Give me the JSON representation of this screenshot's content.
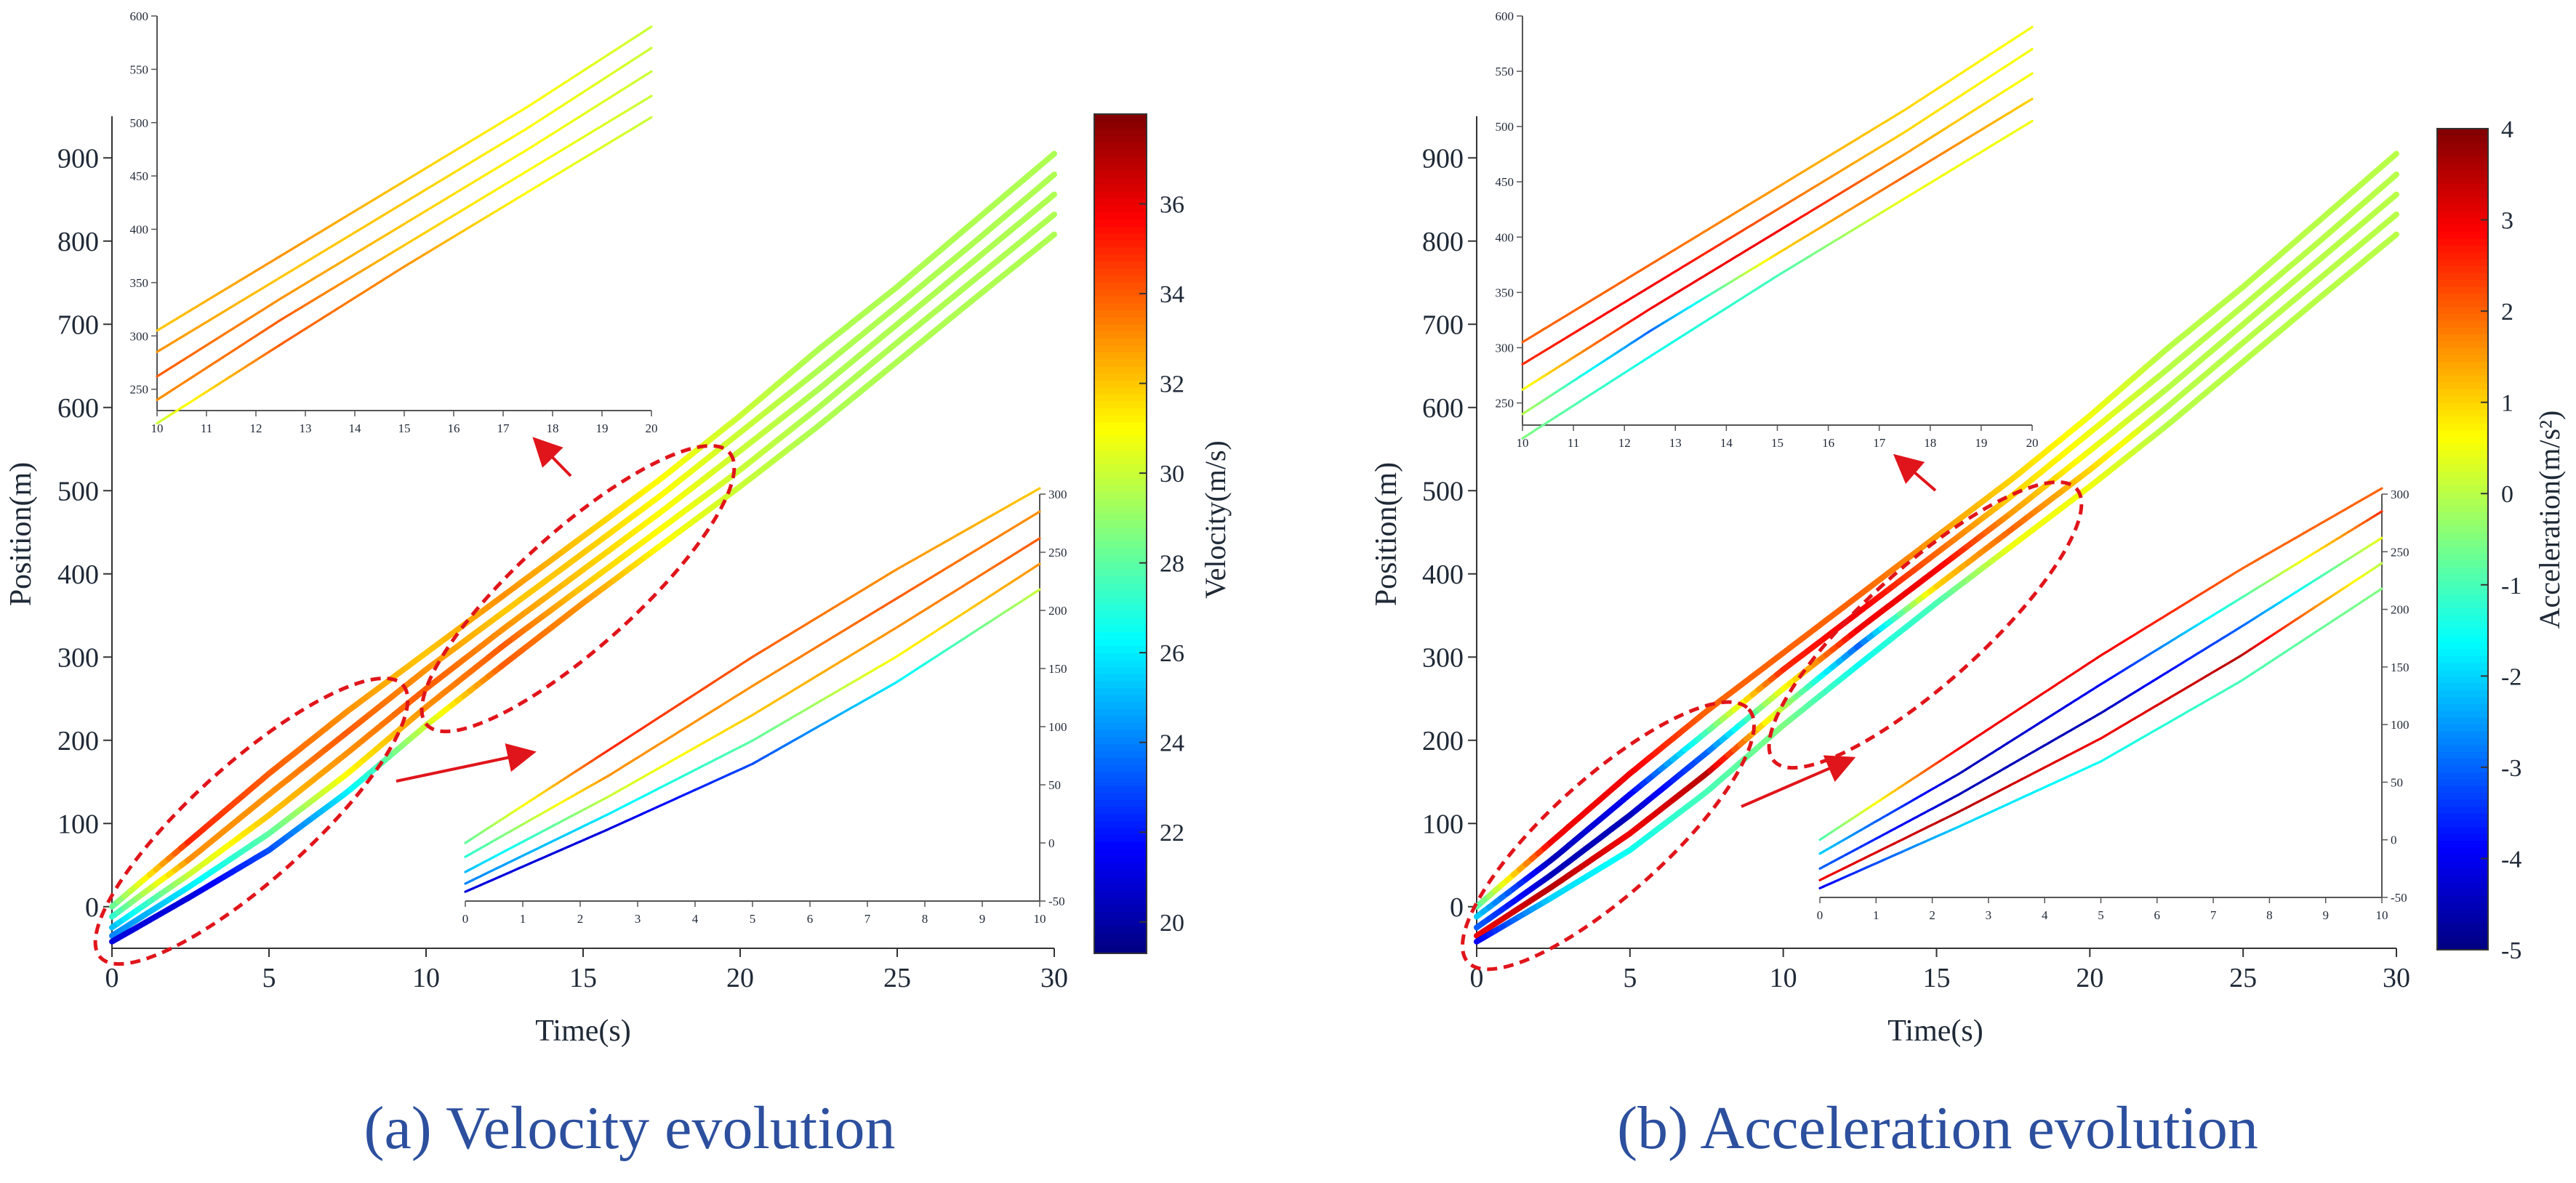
{
  "panels": [
    {
      "id": "a",
      "caption": "(a) Velocity evolution",
      "colorbar": {
        "label": "Velocity(m/s)",
        "ticks": [
          20,
          22,
          24,
          26,
          28,
          30,
          32,
          34,
          36
        ],
        "range": [
          19.3,
          38
        ]
      }
    },
    {
      "id": "b",
      "caption": "(b) Acceleration evolution",
      "colorbar": {
        "label": "Acceleration(m/s²)",
        "ticks": [
          -5,
          -4,
          -3,
          -2,
          -1,
          0,
          1,
          2,
          3,
          4
        ],
        "range": [
          -5,
          4
        ]
      }
    }
  ],
  "chart_data": [
    {
      "type": "line",
      "panel": "a",
      "xlabel": "Time(s)",
      "ylabel": "Position(m)",
      "xlim": [
        0,
        30
      ],
      "ylim": [
        -50,
        950
      ],
      "xticks": [
        0,
        5,
        10,
        15,
        20,
        25,
        30
      ],
      "yticks": [
        0,
        100,
        200,
        300,
        400,
        500,
        600,
        700,
        800,
        900
      ],
      "x": [
        0,
        2.5,
        5,
        7.5,
        10,
        12.5,
        15,
        17.5,
        20,
        22.5,
        25,
        27.5,
        30
      ],
      "series": [
        {
          "values": [
            0,
            80,
            160,
            235,
            305,
            375,
            445,
            515,
            590,
            670,
            745,
            825,
            905
          ],
          "color_values": [
            28,
            35,
            34,
            33,
            32,
            33,
            32,
            31,
            30,
            29.5,
            29.5,
            29.5,
            29.5
          ]
        },
        {
          "values": [
            -12,
            58,
            135,
            210,
            285,
            355,
            425,
            495,
            570,
            645,
            722,
            800,
            880
          ],
          "color_values": [
            27,
            33,
            33,
            34,
            33,
            32,
            32,
            31,
            30,
            29.5,
            29.5,
            29.5,
            29.5
          ]
        },
        {
          "values": [
            -25,
            40,
            110,
            185,
            262,
            335,
            405,
            475,
            548,
            622,
            700,
            778,
            856
          ],
          "color_values": [
            25,
            30,
            32,
            33,
            34,
            33,
            32,
            31,
            30,
            29.5,
            29.5,
            29.5,
            29.5
          ]
        },
        {
          "values": [
            -35,
            25,
            88,
            160,
            240,
            315,
            385,
            455,
            525,
            600,
            678,
            755,
            832
          ],
          "color_values": [
            24,
            26,
            28,
            31,
            33,
            34,
            32,
            31,
            30,
            29.5,
            29.5,
            29.5,
            29.5
          ]
        },
        {
          "values": [
            -42,
            12,
            68,
            138,
            218,
            292,
            365,
            435,
            505,
            578,
            655,
            732,
            808
          ],
          "color_values": [
            21,
            21,
            23,
            26,
            30,
            34,
            33,
            31,
            30,
            29.5,
            29.5,
            29.5,
            29.5
          ]
        }
      ],
      "insets": [
        {
          "location": "upper-left",
          "xlim": [
            10,
            20
          ],
          "ylim": [
            230,
            600
          ],
          "xticks": [
            10,
            11,
            12,
            13,
            14,
            15,
            16,
            17,
            18,
            19,
            20
          ],
          "yticks": [
            250,
            300,
            350,
            400,
            450,
            500,
            550,
            600
          ]
        },
        {
          "location": "lower-right",
          "xlim": [
            0,
            10
          ],
          "ylim": [
            -50,
            300
          ],
          "xticks": [
            0,
            1,
            2,
            3,
            4,
            5,
            6,
            7,
            8,
            9,
            10
          ],
          "yticks": [
            -50,
            0,
            50,
            100,
            150,
            200,
            250,
            300
          ]
        }
      ]
    },
    {
      "type": "line",
      "panel": "b",
      "xlabel": "Time(s)",
      "ylabel": "Position(m)",
      "xlim": [
        0,
        30
      ],
      "ylim": [
        -50,
        950
      ],
      "xticks": [
        0,
        5,
        10,
        15,
        20,
        25,
        30
      ],
      "yticks": [
        0,
        100,
        200,
        300,
        400,
        500,
        600,
        700,
        800,
        900
      ],
      "x": [
        0,
        2.5,
        5,
        7.5,
        10,
        12.5,
        15,
        17.5,
        20,
        22.5,
        25,
        27.5,
        30
      ],
      "series": [
        {
          "values": [
            0,
            80,
            160,
            235,
            305,
            375,
            445,
            515,
            590,
            670,
            745,
            825,
            905
          ],
          "color_values": [
            -1,
            3,
            3,
            2,
            2,
            2,
            1.5,
            1,
            0.5,
            0,
            0,
            0,
            0
          ]
        },
        {
          "values": [
            -12,
            58,
            135,
            210,
            285,
            355,
            425,
            495,
            570,
            645,
            722,
            800,
            880
          ],
          "color_values": [
            -2,
            -4.5,
            -4,
            -1,
            2.5,
            3,
            2,
            1,
            0.5,
            0,
            0,
            0,
            0
          ]
        },
        {
          "values": [
            -25,
            40,
            110,
            185,
            262,
            335,
            405,
            475,
            548,
            622,
            700,
            778,
            856
          ],
          "color_values": [
            -3,
            -4.5,
            -4.5,
            -3,
            0.5,
            3,
            3,
            1.5,
            0.5,
            0,
            0,
            0,
            0
          ]
        },
        {
          "values": [
            -35,
            25,
            88,
            160,
            240,
            315,
            385,
            455,
            525,
            600,
            678,
            755,
            832
          ],
          "color_values": [
            3,
            3.5,
            3,
            3.5,
            0,
            -3,
            1,
            2,
            1,
            0,
            0,
            0,
            0
          ]
        },
        {
          "values": [
            -42,
            12,
            68,
            138,
            218,
            292,
            365,
            435,
            505,
            578,
            655,
            732,
            808
          ],
          "color_values": [
            -4,
            -2,
            -1.5,
            -1,
            -0.5,
            -1.5,
            -1,
            0.5,
            0.5,
            0,
            0,
            0,
            0
          ]
        }
      ],
      "insets": [
        {
          "location": "upper-left",
          "xlim": [
            10,
            20
          ],
          "ylim": [
            230,
            600
          ],
          "xticks": [
            10,
            11,
            12,
            13,
            14,
            15,
            16,
            17,
            18,
            19,
            20
          ],
          "yticks": [
            250,
            300,
            350,
            400,
            450,
            500,
            550,
            600
          ]
        },
        {
          "location": "lower-right",
          "xlim": [
            0,
            10
          ],
          "ylim": [
            -50,
            300
          ],
          "xticks": [
            0,
            1,
            2,
            3,
            4,
            5,
            6,
            7,
            8,
            9,
            10
          ],
          "yticks": [
            -50,
            0,
            50,
            100,
            150,
            200,
            250,
            300
          ]
        }
      ]
    }
  ]
}
